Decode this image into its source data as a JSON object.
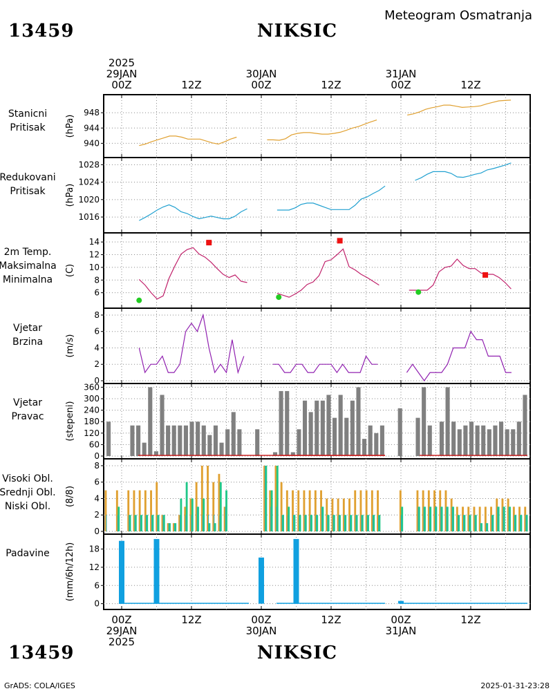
{
  "header": {
    "station_id": "13459",
    "station_name": "NIKSIC",
    "subtitle": "Meteogram Osmatranja"
  },
  "footer": {
    "station_id": "13459",
    "station_name": "NIKSIC",
    "credit": "GrADS: COLA/IGES",
    "timestamp": "2025-01-31-23:28"
  },
  "time_axis": {
    "top": [
      {
        "lines": [
          "2025",
          "29JAN",
          "00Z"
        ]
      },
      {
        "lines": [
          "12Z"
        ]
      },
      {
        "lines": [
          "30JAN",
          "00Z"
        ]
      },
      {
        "lines": [
          "12Z"
        ]
      },
      {
        "lines": [
          "31JAN",
          "00Z"
        ]
      },
      {
        "lines": [
          "12Z"
        ]
      }
    ],
    "bottom": [
      {
        "lines": [
          "00Z",
          "29JAN",
          "2025"
        ]
      },
      {
        "lines": [
          "12Z"
        ]
      },
      {
        "lines": [
          "00Z",
          "30JAN"
        ]
      },
      {
        "lines": [
          "12Z"
        ]
      },
      {
        "lines": [
          "00Z",
          "31JAN"
        ]
      },
      {
        "lines": [
          "12Z"
        ]
      }
    ]
  },
  "colors": {
    "station_pressure": "#e0a030",
    "reduced_pressure": "#20a0d0",
    "temp": "#c0206a",
    "tmax": "#ee1111",
    "tmin": "#22cc22",
    "wind_speed": "#9020b0",
    "wind_dir": "#808080",
    "cloud_high": "#20b0c0",
    "cloud_mid": "#20c888",
    "cloud_low": "#e0a030",
    "precip": "#10a0e0"
  },
  "chart_data": [
    {
      "type": "line",
      "id": "p1",
      "label_lines": [
        "Stanicni",
        "Pritisak"
      ],
      "ylabel": "(hPa)",
      "ylim": [
        937,
        952
      ],
      "yticks": [
        940,
        944,
        948
      ],
      "series": [
        {
          "values": [
            939.4,
            939.8,
            940.4,
            940.9,
            941.4,
            941.9,
            941.9,
            941.6,
            941.1,
            941.1,
            941.1,
            940.6,
            940.1,
            939.8,
            940.4,
            941.1,
            941.6,
            null,
            null,
            null,
            null,
            940.9,
            940.9,
            940.8,
            941.2,
            942.2,
            942.6,
            942.8,
            942.8,
            942.6,
            942.4,
            942.4,
            942.6,
            942.9,
            943.4,
            944.0,
            944.4,
            945.0,
            945.6,
            946.1,
            null,
            null,
            null,
            null,
            947.4,
            947.7,
            948.2,
            948.9,
            949.3,
            949.6,
            950.0,
            950.0,
            949.7,
            949.4,
            949.5,
            949.6,
            949.8,
            950.3,
            950.7,
            951.1,
            951.2,
            951.3
          ]
        }
      ]
    },
    {
      "type": "line",
      "id": "p2",
      "label_lines": [
        "Redukovani",
        "Pritisak"
      ],
      "ylabel": "(hPa)",
      "ylim": [
        1013,
        1029
      ],
      "yticks": [
        1016,
        1020,
        1024,
        1028
      ],
      "series": [
        {
          "values": [
            1015.2,
            1015.9,
            1016.7,
            1017.6,
            1018.3,
            1018.8,
            1018.2,
            1017.2,
            1016.8,
            1016.1,
            1015.6,
            1015.9,
            1016.2,
            1015.9,
            1015.6,
            1015.6,
            1016.2,
            1017.2,
            1017.9,
            null,
            null,
            null,
            null,
            1017.6,
            1017.6,
            1017.6,
            1018.1,
            1018.9,
            1019.2,
            1019.2,
            1018.7,
            1018.2,
            1017.7,
            1017.7,
            1017.7,
            1017.7,
            1018.7,
            1020.1,
            1020.6,
            1021.4,
            1022.1,
            1023.1,
            null,
            null,
            null,
            null,
            1024.4,
            1025.0,
            1025.8,
            1026.4,
            1026.4,
            1026.4,
            1026.0,
            1025.2,
            1025.1,
            1025.4,
            1025.8,
            1026.1,
            1026.8,
            1027.1,
            1027.5,
            1027.9,
            1028.4
          ]
        }
      ]
    },
    {
      "type": "line",
      "id": "p3",
      "label_lines": [
        "2m Temp.",
        "Maksimalna",
        "Minimalna"
      ],
      "ylabel": "(C)",
      "ylim": [
        4,
        15
      ],
      "yticks": [
        6,
        8,
        10,
        12,
        14
      ],
      "series": [
        {
          "values": [
            8.1,
            7.2,
            6.0,
            5.0,
            5.5,
            8.3,
            10.3,
            12.1,
            12.8,
            13.1,
            12.1,
            11.6,
            10.8,
            9.8,
            8.9,
            8.4,
            8.8,
            7.8,
            7.6,
            null,
            null,
            null,
            null,
            5.9,
            5.6,
            5.3,
            5.8,
            6.4,
            7.3,
            7.7,
            8.7,
            10.9,
            11.2,
            12.0,
            12.9,
            10.1,
            9.6,
            8.9,
            8.4,
            7.8,
            7.2,
            null,
            null,
            null,
            null,
            6.4,
            6.4,
            6.4,
            6.4,
            7.2,
            9.3,
            10.0,
            10.2,
            11.3,
            10.3,
            9.8,
            9.8,
            9.1,
            8.9,
            8.9,
            8.4,
            7.6,
            6.6
          ]
        },
        {
          "name": "Maksimalna",
          "type": "scatter",
          "points": [
            [
              15.0,
              13.9
            ],
            [
              37.5,
              14.2
            ],
            [
              62.5,
              8.8
            ]
          ]
        },
        {
          "name": "Minimalna",
          "type": "scatter",
          "points": [
            [
              3.0,
              4.8
            ],
            [
              27.0,
              5.3
            ],
            [
              51.0,
              6.1
            ]
          ]
        }
      ]
    },
    {
      "type": "line",
      "id": "p4",
      "label_lines": [
        "Vjetar",
        "Brzina"
      ],
      "ylabel": "(m/s)",
      "ylim": [
        0,
        8.5
      ],
      "yticks": [
        0,
        2,
        4,
        6,
        8
      ],
      "series": [
        {
          "values": [
            4,
            1,
            2,
            2,
            3,
            1,
            1,
            2,
            6,
            7,
            6,
            8,
            4,
            1,
            2,
            1,
            5,
            1,
            3,
            null,
            null,
            null,
            null,
            2,
            2,
            1,
            1,
            2,
            2,
            1,
            1,
            2,
            2,
            2,
            1,
            2,
            1,
            1,
            1,
            3,
            2,
            2,
            null,
            null,
            null,
            null,
            1,
            2,
            1,
            0,
            1,
            1,
            1,
            2,
            4,
            4,
            4,
            6,
            5,
            5,
            3,
            3,
            3,
            1,
            1
          ]
        }
      ]
    },
    {
      "type": "bar",
      "id": "p5",
      "label_lines": [
        "Vjetar",
        "Pravac"
      ],
      "ylabel": "(stepeni)",
      "ylim": [
        0,
        365
      ],
      "yticks": [
        0,
        60,
        120,
        180,
        240,
        300,
        360
      ],
      "series": [
        {
          "values": [
            180,
            0,
            0,
            0,
            160,
            160,
            70,
            360,
            25,
            320,
            160,
            160,
            160,
            160,
            180,
            180,
            160,
            110,
            160,
            70,
            140,
            230,
            140,
            0,
            0,
            140,
            0,
            0,
            20,
            340,
            340,
            20,
            140,
            290,
            230,
            290,
            290,
            320,
            200,
            320,
            200,
            290,
            360,
            90,
            160,
            120,
            160,
            0,
            0,
            250,
            0,
            0,
            200,
            360,
            160,
            0,
            180,
            360,
            180,
            140,
            160,
            180,
            160,
            160,
            140,
            160,
            180,
            140,
            140,
            180,
            320
          ]
        }
      ]
    },
    {
      "type": "bar",
      "id": "p6",
      "label_lines": [
        "Visoki Obl.",
        "Srednji Obl.",
        "Niski Obl."
      ],
      "ylabel": "(8/8)",
      "ylim": [
        0,
        8.5
      ],
      "yticks": [
        0,
        2,
        4,
        6,
        8
      ],
      "series": [
        {
          "name": "Niski Obl.",
          "values": [
            5,
            null,
            5,
            null,
            5,
            5,
            5,
            5,
            5,
            6,
            2,
            1,
            1,
            2,
            3,
            4,
            6,
            8,
            8,
            6,
            7,
            3,
            null,
            null,
            null,
            null,
            null,
            null,
            8,
            5,
            8,
            6,
            5,
            5,
            5,
            5,
            5,
            5,
            5,
            4,
            4,
            4,
            4,
            4,
            5,
            5,
            5,
            5,
            5,
            null,
            null,
            null,
            5,
            null,
            null,
            5,
            5,
            5,
            5,
            5,
            5,
            4,
            3,
            3,
            3,
            3,
            3,
            3,
            3,
            4,
            4,
            4,
            3,
            3,
            3
          ]
        },
        {
          "name": "Srednji Obl.",
          "values": [
            0,
            null,
            3,
            null,
            2,
            2,
            2,
            2,
            2,
            2,
            2,
            1,
            1,
            4,
            6,
            4,
            3,
            4,
            1,
            1,
            6,
            5,
            null,
            null,
            null,
            null,
            null,
            null,
            8,
            5,
            8,
            2,
            3,
            2,
            2,
            2,
            2,
            2,
            3,
            2,
            2,
            2,
            2,
            2,
            2,
            2,
            2,
            2,
            2,
            null,
            null,
            null,
            3,
            null,
            null,
            3,
            3,
            3,
            3,
            3,
            3,
            3,
            2,
            2,
            2,
            2,
            1,
            1,
            2,
            3,
            3,
            3,
            2,
            2,
            2
          ]
        },
        {
          "name": "Visoki Obl.",
          "values": [
            2,
            null,
            2,
            null,
            2,
            2,
            2,
            2,
            2,
            2,
            2,
            1,
            1,
            2,
            2,
            2,
            3,
            2,
            2,
            2,
            2,
            3,
            null,
            null,
            null,
            null,
            null,
            null,
            8,
            3,
            3,
            2,
            2,
            2,
            2,
            2,
            2,
            2,
            3,
            2,
            2,
            2,
            2,
            2,
            2,
            2,
            2,
            2,
            2,
            null,
            null,
            null,
            2,
            null,
            null,
            3,
            3,
            3,
            3,
            3,
            3,
            3,
            2,
            2,
            2,
            2,
            1,
            1,
            2,
            3,
            3,
            3,
            2,
            2,
            2
          ]
        }
      ]
    },
    {
      "type": "bar",
      "id": "p7",
      "label_lines": [
        "Padavine"
      ],
      "ylabel": "(mm/6h/12h)",
      "ylim": [
        -1,
        22
      ],
      "yticks": [
        0,
        6,
        12,
        18
      ],
      "series": [
        {
          "points": [
            [
              0,
              20.7
            ],
            [
              6,
              21.3
            ],
            [
              24,
              15.2
            ],
            [
              30,
              21.3
            ],
            [
              48,
              0.9
            ]
          ]
        }
      ]
    }
  ]
}
